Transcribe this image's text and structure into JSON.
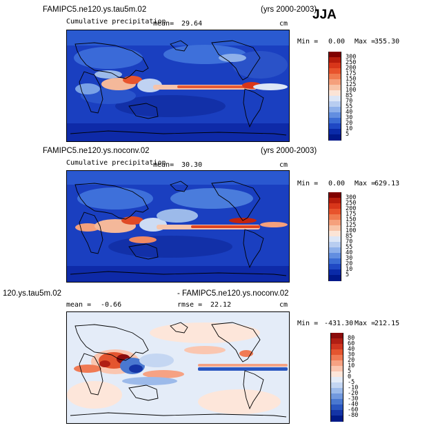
{
  "season": "JJA",
  "panels": [
    {
      "case_title": "FAMIPC5.ne120.ys.tau5m.02",
      "years": "(yrs 2000-2003)",
      "subtitle": "Cumulative precipitation",
      "mean_label": "mean=",
      "mean_value": "29.64",
      "units": "cm",
      "min_label": "Min =",
      "min_value": "0.00",
      "max_label": "Max =",
      "max_value": "355.30",
      "colorbar": {
        "labels": [
          "300",
          "250",
          "200",
          "175",
          "150",
          "125",
          "100",
          "85",
          "70",
          "55",
          "40",
          "30",
          "20",
          "10",
          "5"
        ],
        "colors": [
          "#800000",
          "#b71c0c",
          "#d8361a",
          "#e8532c",
          "#f07a4f",
          "#f5a07c",
          "#f8c4a8",
          "#fbe4d6",
          "#dce6f6",
          "#b8cdf0",
          "#8eb0ea",
          "#628ee0",
          "#3b6cd4",
          "#1f48c4",
          "#0a2aa8",
          "#00188a"
        ]
      }
    },
    {
      "case_title": "FAMIPC5.ne120.ys.noconv.02",
      "years": "(yrs 2000-2003)",
      "subtitle": "Cumulative precipitation",
      "mean_label": "mean=",
      "mean_value": "30.30",
      "units": "cm",
      "min_label": "Min =",
      "min_value": "0.00",
      "max_label": "Max =",
      "max_value": "629.13",
      "colorbar": {
        "labels": [
          "300",
          "250",
          "200",
          "175",
          "150",
          "125",
          "100",
          "85",
          "70",
          "55",
          "40",
          "30",
          "20",
          "10",
          "5"
        ],
        "colors": [
          "#800000",
          "#b71c0c",
          "#d8361a",
          "#e8532c",
          "#f07a4f",
          "#f5a07c",
          "#f8c4a8",
          "#fbe4d6",
          "#dce6f6",
          "#b8cdf0",
          "#8eb0ea",
          "#628ee0",
          "#3b6cd4",
          "#1f48c4",
          "#0a2aa8",
          "#00188a"
        ]
      }
    },
    {
      "case_title_left": "120.ys.tau5m.02",
      "case_title_right": "- FAMIPC5.ne120.ys.noconv.02",
      "mean_label": "mean =",
      "mean_value": "-0.66",
      "rmse_label": "rmse =",
      "rmse_value": "22.12",
      "units": "cm",
      "min_label": "Min =",
      "min_value": "-431.30",
      "max_label": "Max =",
      "max_value": "212.15",
      "colorbar": {
        "labels": [
          "80",
          "60",
          "40",
          "30",
          "20",
          "10",
          "5",
          "0",
          "-5",
          "-10",
          "-20",
          "-30",
          "-40",
          "-60",
          "-80"
        ],
        "colors": [
          "#8a0c0c",
          "#b01e14",
          "#cf3520",
          "#e4552f",
          "#f07a54",
          "#f6a283",
          "#fac6b0",
          "#fde6da",
          "#e4ecf8",
          "#c4d6f2",
          "#9cbaea",
          "#7299de",
          "#4a78d0",
          "#2a56c0",
          "#1434a6",
          "#001a88"
        ]
      }
    }
  ]
}
